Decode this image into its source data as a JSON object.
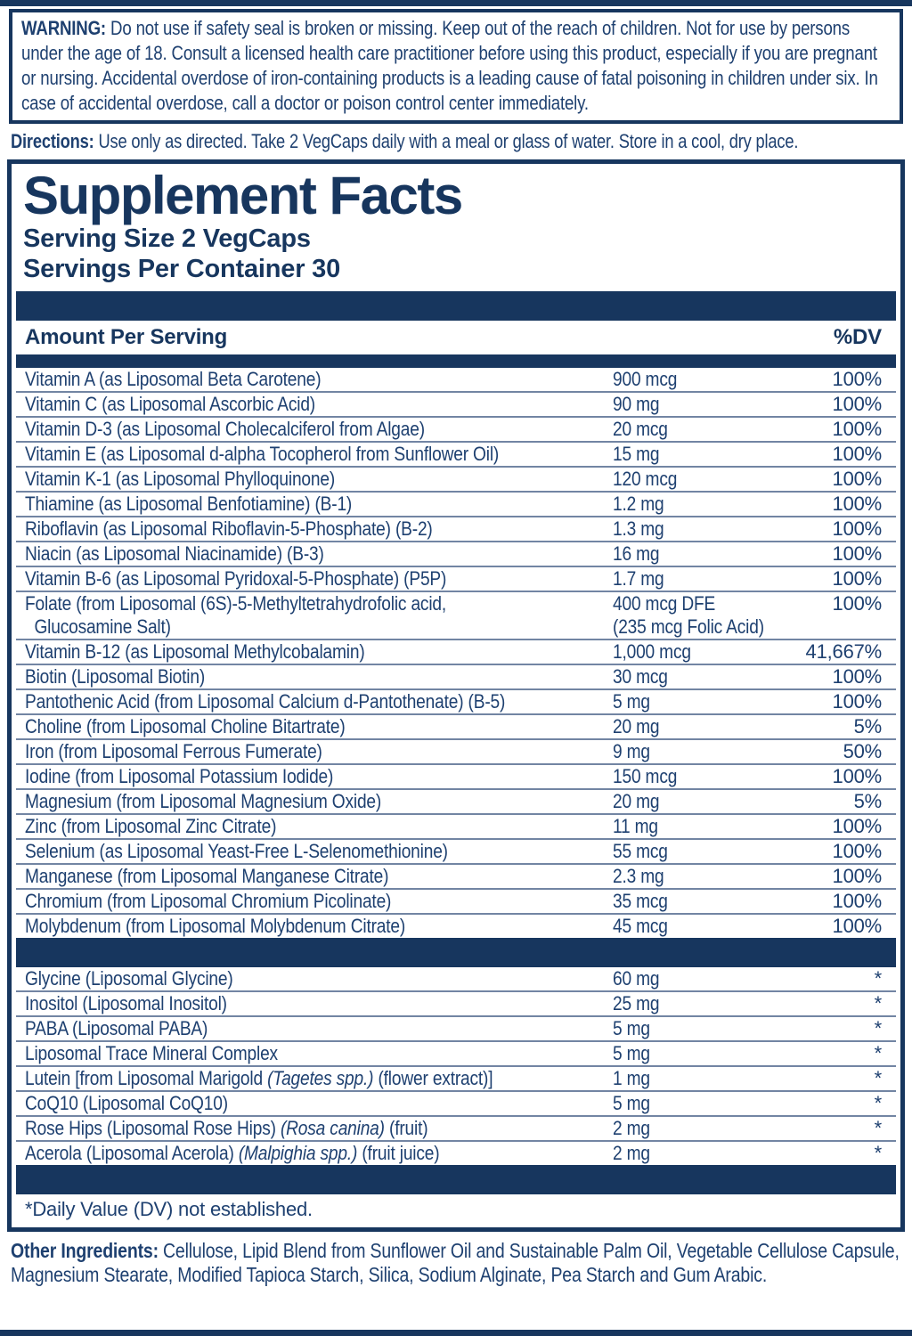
{
  "colors": {
    "navy": "#17365E",
    "text": "#1E4070",
    "separator": "#7285A3",
    "background": "#FFFFFF"
  },
  "warning": {
    "label": "WARNING:",
    "text": "Do not use if safety seal is broken or missing. Keep out of the reach of children. Not for use by persons under the age of 18. Consult a licensed health care practitioner before using this product, especially if you are pregnant or nursing. Accidental overdose of iron-containing products is a leading cause of fatal poisoning in children under six. In case of accidental overdose, call a doctor or poison control center immediately."
  },
  "directions": {
    "label": "Directions:",
    "text": "Use only as directed. Take 2 VegCaps daily with a meal or glass of water. Store in a cool, dry place."
  },
  "supplement_facts": {
    "title": "Supplement Facts",
    "serving_size": "Serving Size 2 VegCaps",
    "servings_per_container": "Servings Per Container 30",
    "header": {
      "amount_label": "Amount Per Serving",
      "dv_label": "%DV"
    },
    "rows": [
      {
        "name": [
          {
            "text": "Vitamin A (as Liposomal Beta Carotene)"
          }
        ],
        "amount": "900 mcg",
        "dv": "100%"
      },
      {
        "name": [
          {
            "text": "Vitamin C (as Liposomal Ascorbic Acid)"
          }
        ],
        "amount": "90 mg",
        "dv": "100%"
      },
      {
        "name": [
          {
            "text": "Vitamin D-3 (as Liposomal Cholecalciferol from Algae)"
          }
        ],
        "amount": "20 mcg",
        "dv": "100%"
      },
      {
        "name": [
          {
            "text": "Vitamin E (as Liposomal d-alpha Tocopherol from Sunflower Oil)"
          }
        ],
        "amount": "15 mg",
        "dv": "100%"
      },
      {
        "name": [
          {
            "text": "Vitamin K-1 (as Liposomal Phylloquinone)"
          }
        ],
        "amount": "120 mcg",
        "dv": "100%"
      },
      {
        "name": [
          {
            "text": "Thiamine (as Liposomal Benfotiamine) (B-1)"
          }
        ],
        "amount": "1.2 mg",
        "dv": "100%"
      },
      {
        "name": [
          {
            "text": "Riboflavin (as Liposomal Riboflavin-5-Phosphate) (B-2)"
          }
        ],
        "amount": "1.3 mg",
        "dv": "100%"
      },
      {
        "name": [
          {
            "text": "Niacin (as Liposomal Niacinamide) (B-3)"
          }
        ],
        "amount": "16 mg",
        "dv": "100%"
      },
      {
        "name": [
          {
            "text": "Vitamin B-6 (as Liposomal Pyridoxal-5-Phosphate) (P5P)"
          }
        ],
        "amount": "1.7 mg",
        "dv": "100%"
      },
      {
        "name": [
          {
            "text": "Folate (from Liposomal (6S)-5-Methyltetrahydrofolic acid,"
          }
        ],
        "name2": "Glucosamine Salt)",
        "amount": "400 mcg DFE",
        "amount2": "(235 mcg Folic Acid)",
        "dv": "100%"
      },
      {
        "name": [
          {
            "text": "Vitamin B-12 (as Liposomal Methylcobalamin)"
          }
        ],
        "amount": "1,000 mcg",
        "dv": "41,667%"
      },
      {
        "name": [
          {
            "text": "Biotin (Liposomal Biotin)"
          }
        ],
        "amount": "30 mcg",
        "dv": "100%"
      },
      {
        "name": [
          {
            "text": "Pantothenic Acid (from Liposomal Calcium d-Pantothenate) (B-5)"
          }
        ],
        "amount": "5 mg",
        "dv": "100%"
      },
      {
        "name": [
          {
            "text": "Choline (from Liposomal Choline Bitartrate)"
          }
        ],
        "amount": "20 mg",
        "dv": "5%"
      },
      {
        "name": [
          {
            "text": "Iron (from Liposomal Ferrous Fumerate)"
          }
        ],
        "amount": "9 mg",
        "dv": "50%"
      },
      {
        "name": [
          {
            "text": "Iodine (from Liposomal Potassium Iodide)"
          }
        ],
        "amount": "150 mcg",
        "dv": "100%"
      },
      {
        "name": [
          {
            "text": "Magnesium (from Liposomal Magnesium Oxide)"
          }
        ],
        "amount": "20 mg",
        "dv": "5%"
      },
      {
        "name": [
          {
            "text": "Zinc (from Liposomal Zinc Citrate)"
          }
        ],
        "amount": "11 mg",
        "dv": "100%"
      },
      {
        "name": [
          {
            "text": "Selenium (as Liposomal Yeast-Free L-Selenomethionine)"
          }
        ],
        "amount": "55 mcg",
        "dv": "100%"
      },
      {
        "name": [
          {
            "text": "Manganese (from Liposomal Manganese Citrate)"
          }
        ],
        "amount": "2.3 mg",
        "dv": "100%"
      },
      {
        "name": [
          {
            "text": "Chromium (from Liposomal Chromium Picolinate)"
          }
        ],
        "amount": "35 mcg",
        "dv": "100%"
      },
      {
        "name": [
          {
            "text": "Molybdenum (from Liposomal Molybdenum Citrate)"
          }
        ],
        "amount": "45 mcg",
        "dv": "100%"
      }
    ],
    "rows_no_dv": [
      {
        "name": [
          {
            "text": "Glycine (Liposomal Glycine)"
          }
        ],
        "amount": "60 mg",
        "dv": "*"
      },
      {
        "name": [
          {
            "text": "Inositol (Liposomal Inositol)"
          }
        ],
        "amount": "25 mg",
        "dv": "*"
      },
      {
        "name": [
          {
            "text": "PABA (Liposomal PABA)"
          }
        ],
        "amount": "5 mg",
        "dv": "*"
      },
      {
        "name": [
          {
            "text": "Liposomal Trace Mineral Complex"
          }
        ],
        "amount": "5 mg",
        "dv": "*"
      },
      {
        "name": [
          {
            "text": "Lutein [from Liposomal Marigold "
          },
          {
            "text": "(Tagetes spp.)",
            "italic": true
          },
          {
            "text": " (flower extract)]"
          }
        ],
        "amount": "1 mg",
        "dv": "*"
      },
      {
        "name": [
          {
            "text": "CoQ10 (Liposomal CoQ10)"
          }
        ],
        "amount": "5 mg",
        "dv": "*"
      },
      {
        "name": [
          {
            "text": "Rose Hips (Liposomal Rose Hips) "
          },
          {
            "text": "(Rosa canina)",
            "italic": true
          },
          {
            "text": " (fruit)"
          }
        ],
        "amount": "2 mg",
        "dv": "*"
      },
      {
        "name": [
          {
            "text": "Acerola (Liposomal Acerola) "
          },
          {
            "text": "(Malpighia spp.)",
            "italic": true
          },
          {
            "text": " (fruit juice)"
          }
        ],
        "amount": "2 mg",
        "dv": "*"
      }
    ],
    "footnote": "*Daily Value (DV) not established."
  },
  "other_ingredients": {
    "label": "Other Ingredients:",
    "text": "Cellulose, Lipid Blend from Sunflower Oil and Sustainable Palm Oil, Vegetable Cellulose Capsule, Magnesium Stearate, Modified Tapioca Starch, Silica, Sodium Alginate, Pea Starch and Gum Arabic."
  }
}
